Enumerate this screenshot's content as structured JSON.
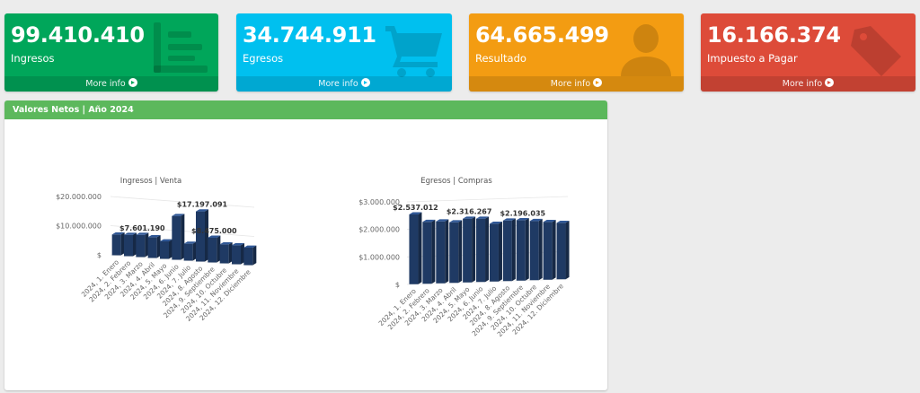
{
  "boxes": [
    {
      "value": "99.410.410",
      "label": "Ingresos",
      "more": "More info",
      "color": "#00a65a",
      "icon": "list-icon"
    },
    {
      "value": "34.744.911",
      "label": "Egresos",
      "more": "More info",
      "color": "#00c0ef",
      "icon": "shopping-cart-icon"
    },
    {
      "value": "64.665.499",
      "label": "Resultado",
      "more": "More info",
      "color": "#f39c12",
      "icon": "user-icon"
    },
    {
      "value": "16.166.374",
      "label": "Impuesto a Pagar",
      "more": "More info",
      "color": "#dd4b39",
      "icon": "tag-icon"
    }
  ],
  "panel": {
    "title": "Valores Netos | Año 2024"
  },
  "chart_data": [
    {
      "type": "bar",
      "title": "Ingresos | Venta",
      "categories": [
        "2024, 1. Enero",
        "2024, 2. Febrero",
        "2024, 3. Marzo",
        "2024, 4. Abril",
        "2024, 5. Mayo",
        "2024, 6. Junio",
        "2024, 7. Julio",
        "2024, 8. Agosto",
        "2024, 9. Septiembre",
        "2024, 10. Octubre",
        "2024, 11. Noviembre",
        "2024, 12. Diciembre"
      ],
      "values": [
        7100000,
        7300000,
        7601190,
        7100000,
        6000000,
        15000000,
        5800000,
        17197091,
        8475000,
        6500000,
        6500000,
        6000000
      ],
      "yticks": [
        "$",
        "$10.000.000",
        "$20.000.000"
      ],
      "ylim": [
        0,
        20000000
      ],
      "data_labels": [
        {
          "index": 2,
          "text": "$7.601.190"
        },
        {
          "index": 7,
          "text": "$17.197.091"
        },
        {
          "index": 8,
          "text": "$8.475.000"
        }
      ],
      "color": "#1f3a64"
    },
    {
      "type": "bar",
      "title": "Egresos | Compras",
      "categories": [
        "2024, 1. Enero",
        "2024, 2. Febrero",
        "2024, 3. Marzo",
        "2024, 4. Abril",
        "2024, 5. Mayo",
        "2024, 6. Junio",
        "2024, 7. Julio",
        "2024, 8. Agosto",
        "2024, 9. Septiembre",
        "2024, 10. Octubre",
        "2024, 11. Noviembre",
        "2024, 12. Diciembre"
      ],
      "values": [
        2537012,
        2250000,
        2250000,
        2200000,
        2316267,
        2300000,
        2100000,
        2200000,
        2196035,
        2150000,
        2100000,
        2050000
      ],
      "yticks": [
        "$",
        "$1.000.000",
        "$2.000.000",
        "$3.000.000"
      ],
      "ylim": [
        0,
        3000000
      ],
      "data_labels": [
        {
          "index": 0,
          "text": "$2.537.012"
        },
        {
          "index": 4,
          "text": "$2.316.267"
        },
        {
          "index": 8,
          "text": "$2.196.035"
        }
      ],
      "color": "#1f3a64"
    }
  ]
}
